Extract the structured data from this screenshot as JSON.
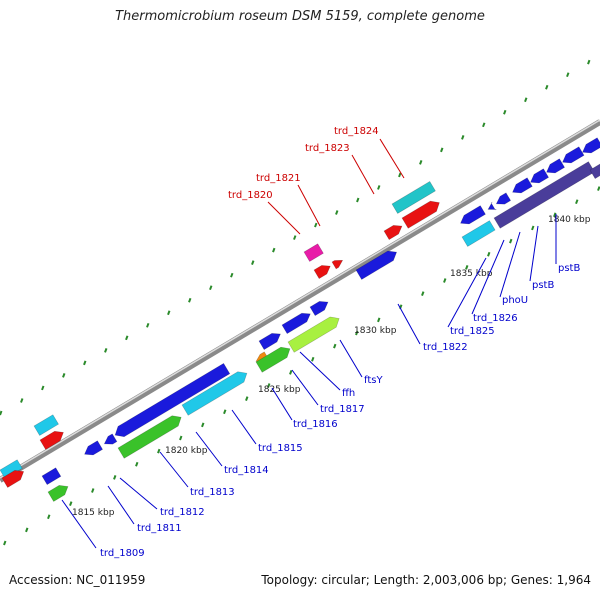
{
  "title": "Thermomicrobium roseum DSM 5159, complete genome",
  "footer": {
    "accession": "Accession: NC_011959",
    "summary": "Topology: circular; Length: 2,003,006 bp; Genes: 1,964"
  },
  "ticks": [
    "1815 kbp",
    "1820 kbp",
    "1825 kbp",
    "1830 kbp",
    "1835 kbp",
    "1840 kbp"
  ],
  "gene_labels": [
    "trd_1809",
    "trd_1811",
    "trd_1812",
    "trd_1813",
    "trd_1814",
    "trd_1815",
    "trd_1816",
    "trd_1817",
    "ffh",
    "ftsY",
    "trd_1820",
    "trd_1821",
    "trd_1822",
    "trd_1823",
    "trd_1824",
    "trd_1825",
    "trd_1826",
    "phoU",
    "pstB",
    "pstB"
  ],
  "colors": {
    "blue": "#1a1adc",
    "cyan": "#20c8e8",
    "red": "#e81212",
    "green": "#3ac22a",
    "lime": "#a8f040",
    "magenta": "#e81ca8",
    "purple": "#4a3d9a",
    "teal": "#22c4c8",
    "orange": "#f08a10",
    "label_blue": "#0000cc",
    "label_red": "#cc0000",
    "dot_green": "#2a8a2a"
  }
}
